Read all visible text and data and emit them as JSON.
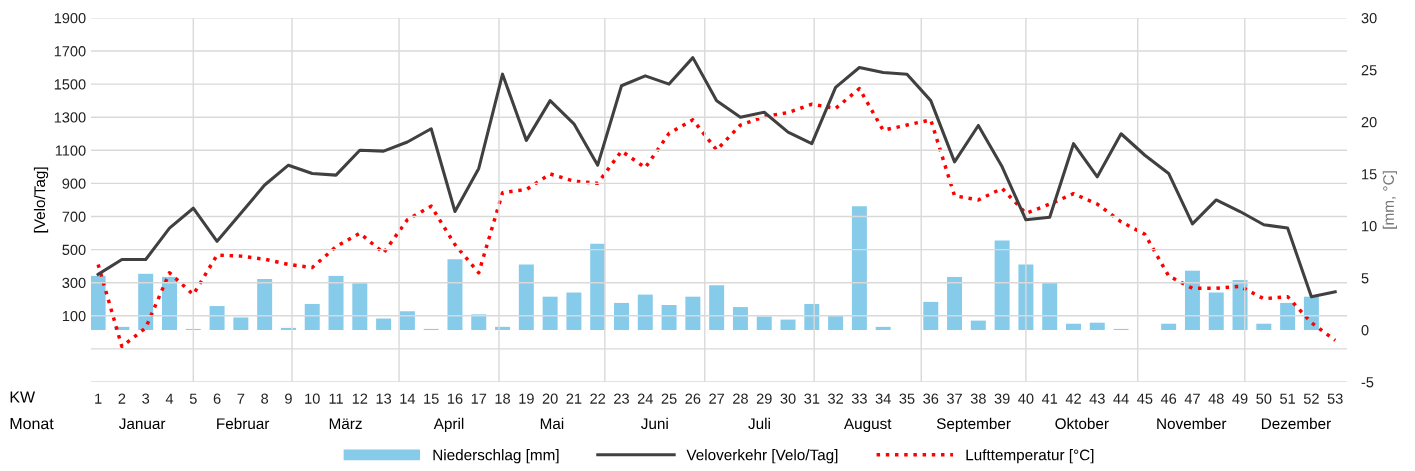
{
  "chart_data": {
    "type": "bar",
    "x": [
      1,
      2,
      3,
      4,
      5,
      6,
      7,
      8,
      9,
      10,
      11,
      12,
      13,
      14,
      15,
      16,
      17,
      18,
      19,
      20,
      21,
      22,
      23,
      24,
      25,
      26,
      27,
      28,
      29,
      30,
      31,
      32,
      33,
      34,
      35,
      36,
      37,
      38,
      39,
      40,
      41,
      42,
      43,
      44,
      45,
      46,
      47,
      48,
      49,
      50,
      51,
      52,
      53
    ],
    "xlim": [
      0.7,
      53.5
    ],
    "xticks": [
      1,
      2,
      3,
      4,
      5,
      6,
      7,
      8,
      9,
      10,
      11,
      12,
      13,
      14,
      15,
      16,
      17,
      18,
      19,
      20,
      21,
      22,
      23,
      24,
      25,
      26,
      27,
      28,
      29,
      30,
      31,
      32,
      33,
      34,
      35,
      36,
      37,
      38,
      39,
      40,
      41,
      42,
      43,
      44,
      45,
      46,
      47,
      48,
      49,
      50,
      51,
      52,
      53
    ],
    "ylabel": "[Velo/Tag]",
    "y2label": "[mm, °C]",
    "ylim": [
      -300,
      1900
    ],
    "yticks": [
      {
        "value": -300,
        "label": null
      },
      {
        "value": -100,
        "label": null
      },
      100,
      300,
      500,
      700,
      900,
      1100,
      1300,
      1500,
      1700,
      1900
    ],
    "y2lim": [
      -5,
      30
    ],
    "y2ticks": [
      -5,
      0,
      5,
      10,
      15,
      20,
      25,
      30
    ],
    "grid": "y",
    "legend": "bottom",
    "series": [
      {
        "name": "Niederschlag [mm]",
        "axis": "y2",
        "color": "#86cbea",
        "values": [
          5.2,
          0.3,
          5.4,
          5.1,
          0.1,
          2.3,
          1.2,
          4.9,
          0.2,
          2.5,
          5.2,
          4.5,
          1.1,
          1.8,
          0.1,
          6.8,
          1.5,
          0.3,
          6.3,
          3.2,
          3.6,
          8.3,
          2.6,
          3.4,
          2.4,
          3.2,
          4.3,
          2.2,
          1.3,
          1.0,
          2.5,
          1.4,
          11.9,
          0.3,
          0,
          2.7,
          5.1,
          0.9,
          8.6,
          6.3,
          4.6,
          0.6,
          0.7,
          0.1,
          0,
          0.6,
          5.7,
          3.6,
          4.8,
          0.6,
          2.6,
          3.2,
          0
        ]
      },
      {
        "name": "Veloverkehr [Velo/Tag]",
        "type": "line",
        "axis": "y",
        "color": "#404040",
        "line_style": "solid",
        "values": [
          350,
          440,
          440,
          630,
          750,
          550,
          720,
          890,
          1010,
          960,
          950,
          1100,
          1095,
          1150,
          1230,
          730,
          990,
          1560,
          1160,
          1400,
          1260,
          1010,
          1490,
          1550,
          1500,
          1660,
          1400,
          1300,
          1330,
          1210,
          1140,
          1480,
          1600,
          1570,
          1560,
          1400,
          1030,
          1250,
          1000,
          680,
          695,
          1140,
          940,
          1200,
          1070,
          960,
          655,
          800,
          730,
          650,
          630,
          215,
          245
        ]
      },
      {
        "name": "Lufttemperatur [°C]",
        "type": "line",
        "axis": "y2",
        "color": "#ff0000",
        "line_style": "dotted",
        "values": [
          6.3,
          -1.6,
          0.2,
          5.5,
          3.4,
          7.2,
          7.1,
          6.8,
          6.3,
          6.0,
          8.0,
          9.3,
          7.4,
          10.6,
          11.9,
          8.2,
          5.5,
          13.2,
          13.5,
          15.0,
          14.3,
          14.1,
          17.2,
          15.6,
          18.9,
          20.2,
          17.3,
          19.7,
          20.5,
          20.9,
          21.7,
          21.3,
          23.2,
          19.2,
          19.7,
          20.2,
          12.9,
          12.5,
          13.6,
          11.2,
          12.1,
          13.1,
          12.1,
          10.4,
          9.2,
          5.2,
          4.0,
          4.0,
          4.2,
          3.0,
          3.2,
          0.7,
          -1.0
        ]
      }
    ],
    "ref_lines": [
      {
        "axis": "x",
        "value": 5.0,
        "color": "#d9d9d9"
      },
      {
        "axis": "x",
        "value": 9.15,
        "color": "#d9d9d9"
      },
      {
        "axis": "x",
        "value": 13.65,
        "color": "#d9d9d9"
      },
      {
        "axis": "x",
        "value": 17.85,
        "color": "#d9d9d9"
      },
      {
        "axis": "x",
        "value": 22.3,
        "color": "#d9d9d9"
      },
      {
        "axis": "x",
        "value": 26.5,
        "color": "#d9d9d9"
      },
      {
        "axis": "x",
        "value": 31.1,
        "color": "#d9d9d9"
      },
      {
        "axis": "x",
        "value": 35.6,
        "color": "#d9d9d9"
      },
      {
        "axis": "x",
        "value": 40.0,
        "color": "#d9d9d9"
      },
      {
        "axis": "x",
        "value": 44.7,
        "color": "#d9d9d9"
      },
      {
        "axis": "x",
        "value": 49.2,
        "color": "#d9d9d9"
      }
    ],
    "annotations": [
      "KW",
      "Monat",
      "Januar",
      "Februar",
      "März",
      "April",
      "Mai",
      "Juni",
      "Juli",
      "August",
      "September",
      "Oktober",
      "November",
      "Dezember"
    ]
  }
}
